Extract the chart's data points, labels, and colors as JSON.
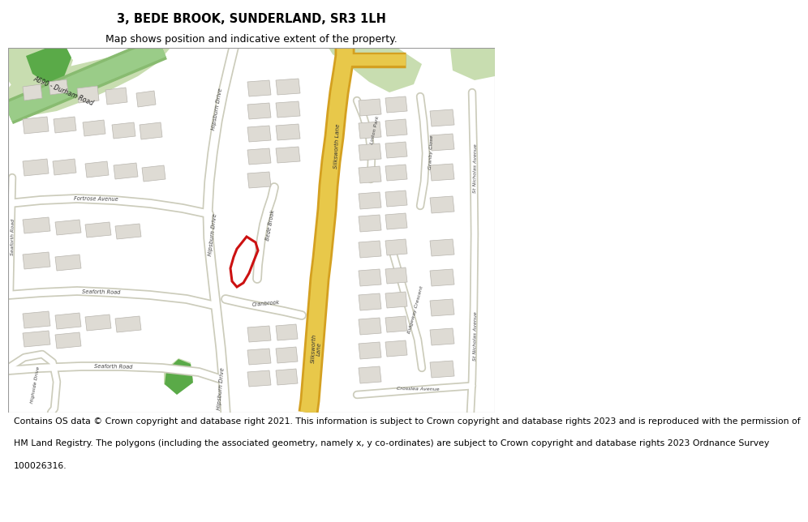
{
  "title_line1": "3, BEDE BROOK, SUNDERLAND, SR3 1LH",
  "title_line2": "Map shows position and indicative extent of the property.",
  "footer_lines": [
    "Contains OS data © Crown copyright and database right 2021. This information is subject to Crown copyright and database rights 2023 and is reproduced with the permission of",
    "HM Land Registry. The polygons (including the associated geometry, namely x, y co-ordinates) are subject to Crown copyright and database rights 2023 Ordnance Survey",
    "100026316."
  ],
  "map_bg": "#f0eeea",
  "road_white": "#ffffff",
  "road_outline": "#ccccbb",
  "road_yellow": "#e8c84a",
  "road_yellow_outline": "#d4a020",
  "green_light": "#c8ddb0",
  "green_dark": "#5aaa48",
  "green_road": "#88bb78",
  "building_fill": "#dedbd4",
  "building_edge": "#b8b5ae",
  "plot_red": "#cc1111",
  "title_fs": 10.5,
  "sub_fs": 9,
  "footer_fs": 7.8
}
